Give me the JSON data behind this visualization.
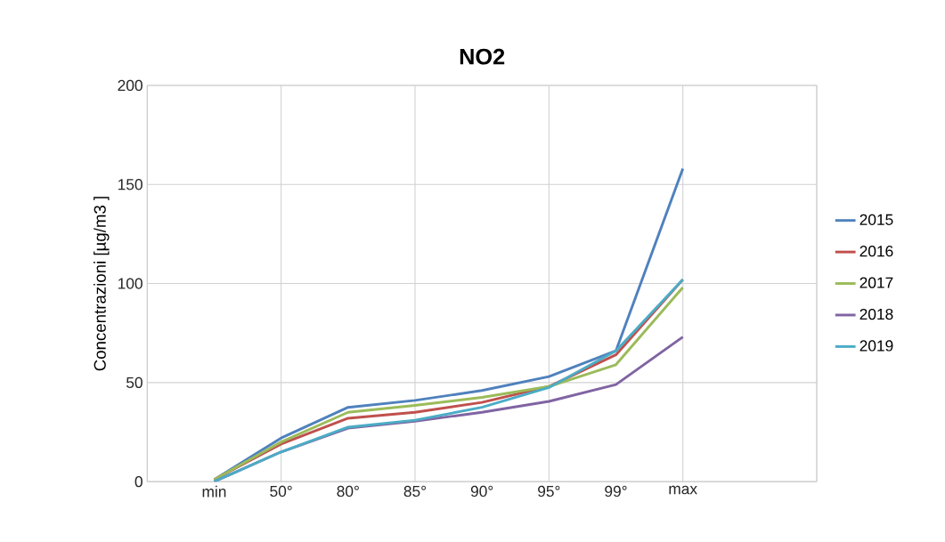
{
  "chart_data": {
    "type": "line",
    "title": "NO2",
    "ylabel": "Concentrazioni [µg/m3 ]",
    "categories": [
      "min",
      "50°",
      "80°",
      "85°",
      "90°",
      "95°",
      "99°",
      "max"
    ],
    "series": [
      {
        "name": "2015",
        "color": "#4f81bd",
        "values": [
          1,
          22,
          37.5,
          41,
          46,
          53,
          66,
          158
        ]
      },
      {
        "name": "2016",
        "color": "#c0504d",
        "values": [
          1,
          19,
          32,
          35,
          40,
          48,
          64,
          102
        ]
      },
      {
        "name": "2017",
        "color": "#9bbb59",
        "values": [
          1,
          20,
          35,
          38.5,
          42.5,
          48,
          59,
          98
        ]
      },
      {
        "name": "2018",
        "color": "#8064a2",
        "values": [
          0,
          15,
          27,
          30.5,
          35,
          40.5,
          49,
          73
        ]
      },
      {
        "name": "2019",
        "color": "#4bacc6",
        "values": [
          0,
          15,
          27.5,
          31,
          37.5,
          47.5,
          66,
          102
        ]
      }
    ],
    "ylim": [
      0,
      200
    ],
    "yticks": [
      0,
      50,
      100,
      150,
      200
    ],
    "grid": true,
    "legend": "right",
    "marker": "none",
    "line_style": "solid"
  }
}
